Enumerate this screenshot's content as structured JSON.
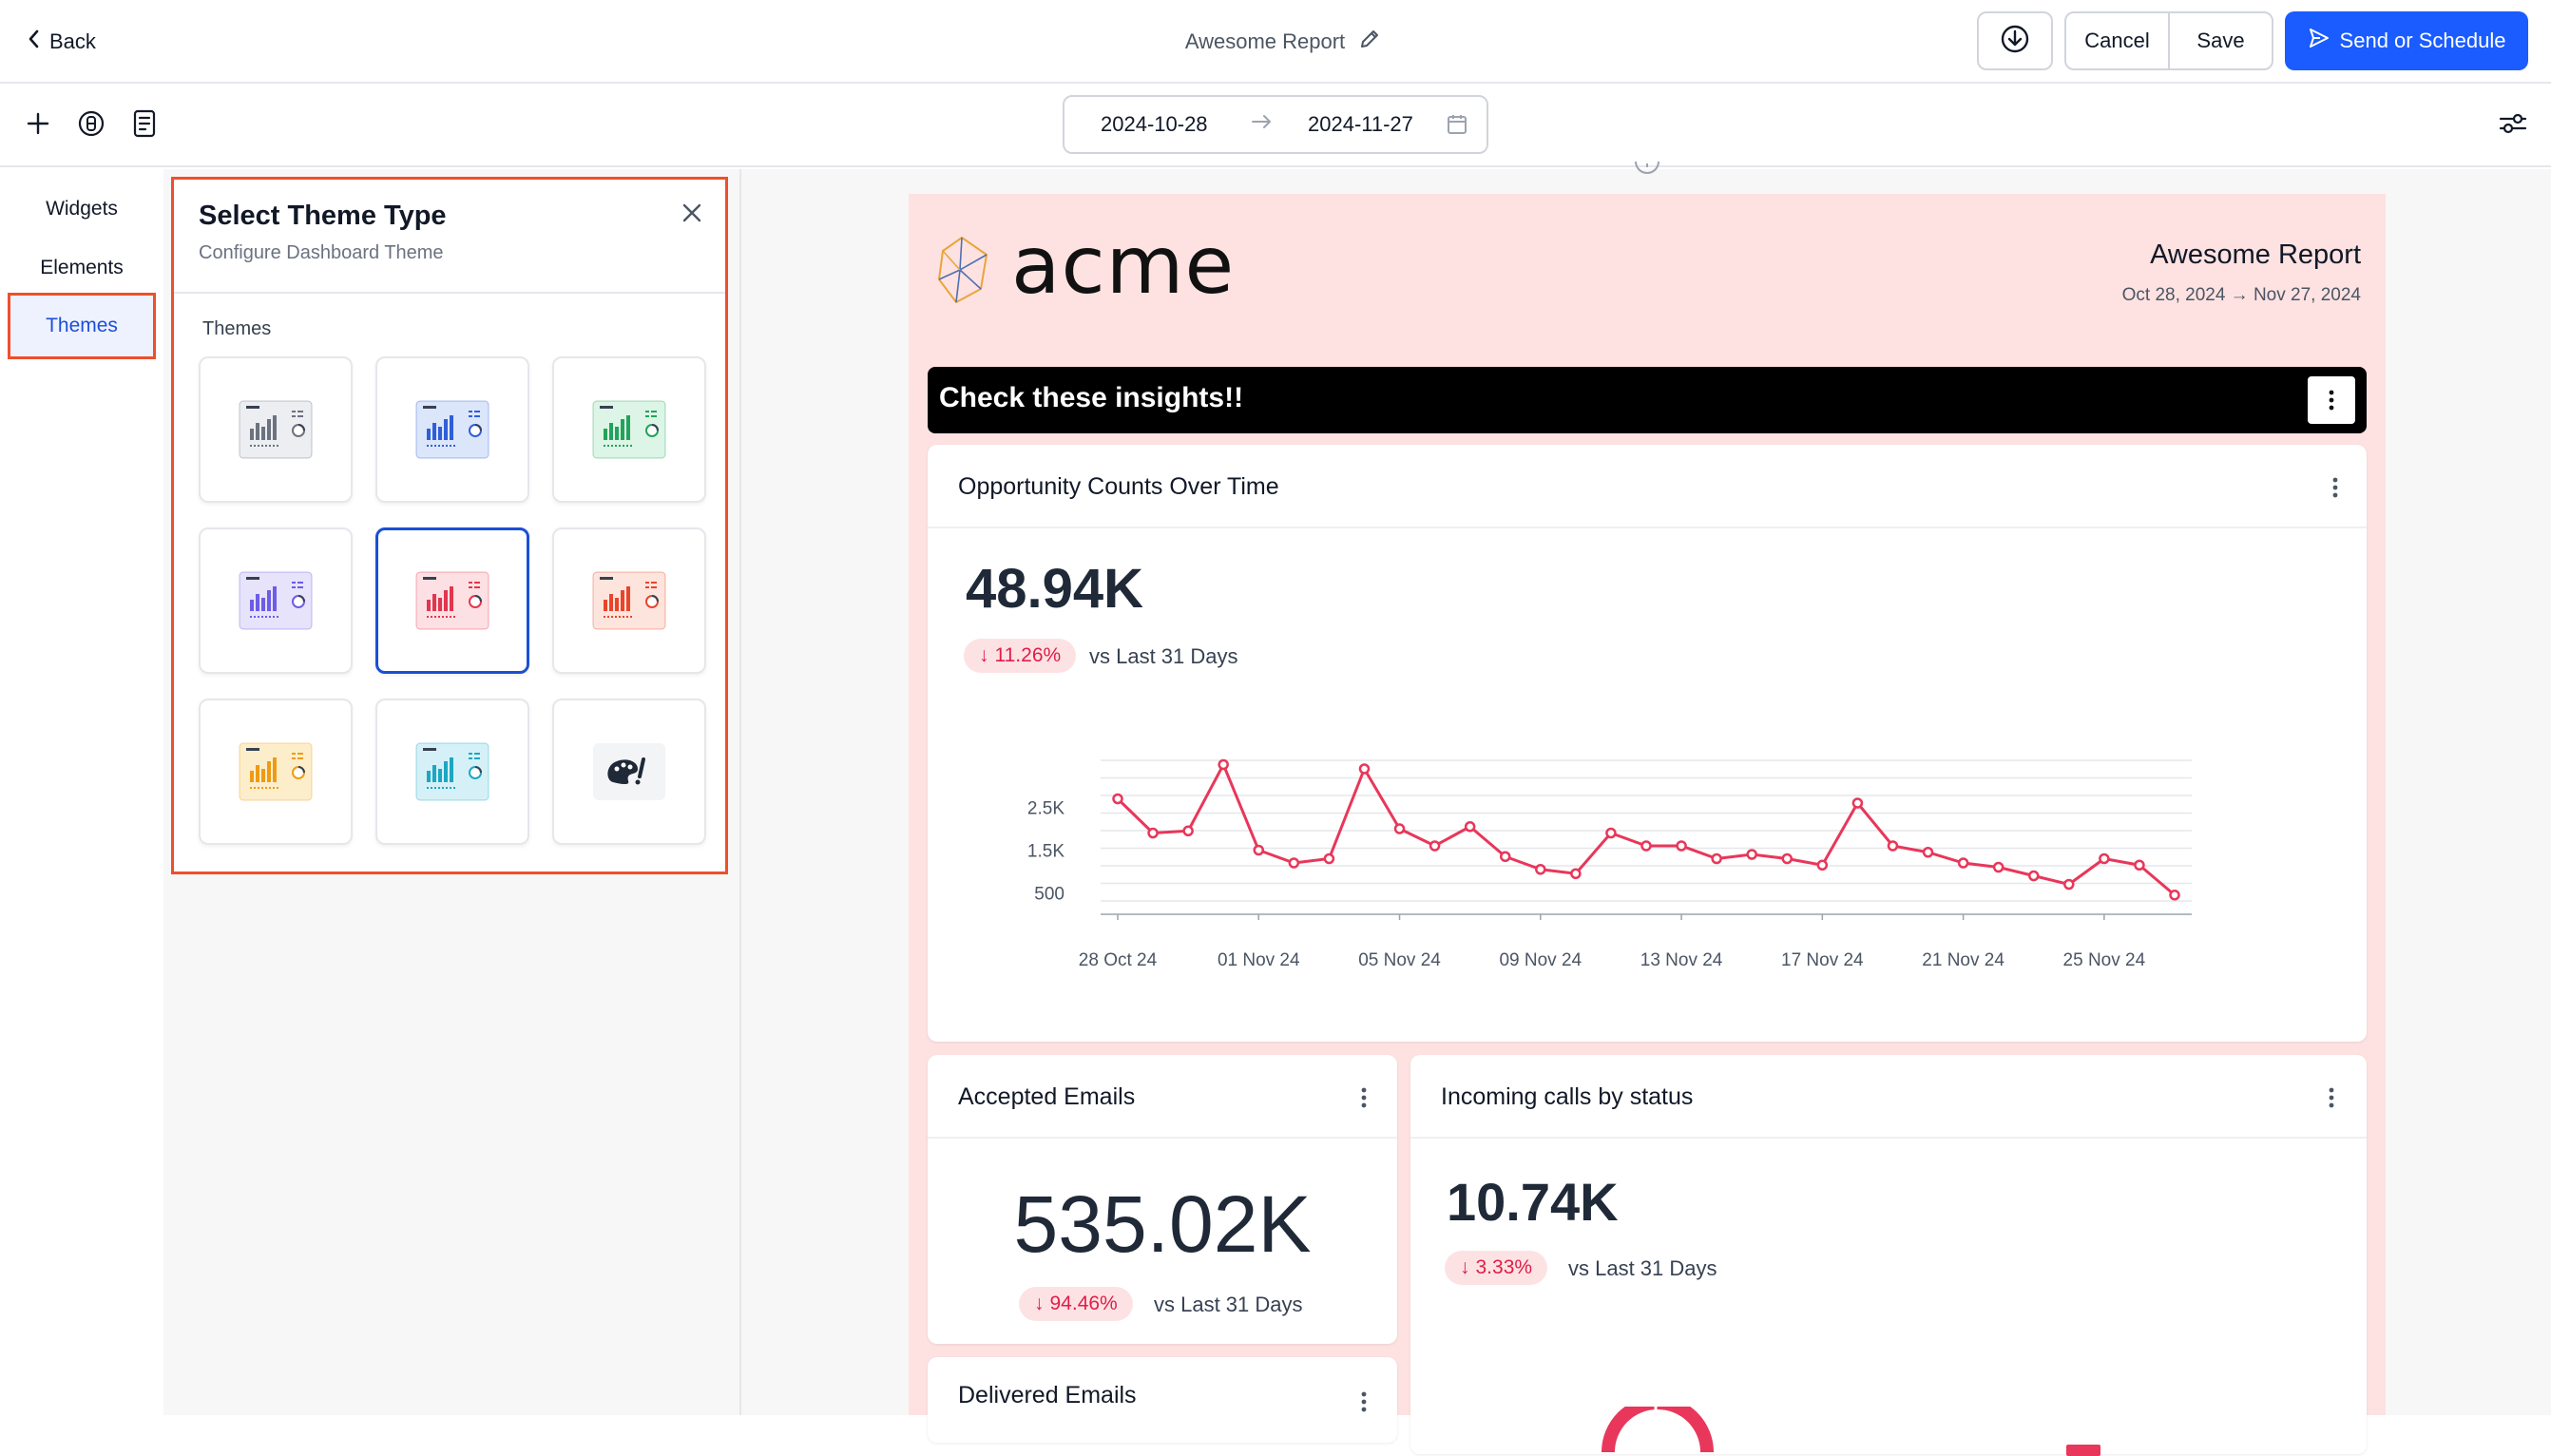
{
  "topbar": {
    "back_label": "Back",
    "report_title": "Awesome Report",
    "cancel_label": "Cancel",
    "save_label": "Save",
    "send_label": "Send or Schedule"
  },
  "date_range": {
    "start": "2024-10-28",
    "end": "2024-11-27"
  },
  "nav": {
    "items": [
      {
        "label": "Widgets"
      },
      {
        "label": "Elements"
      },
      {
        "label": "Themes",
        "active": true
      }
    ]
  },
  "theme_panel": {
    "title": "Select Theme Type",
    "subtitle": "Configure Dashboard Theme",
    "section_label": "Themes",
    "themes": [
      {
        "name": "gray",
        "accent": "#6b7280",
        "bg": "#eceef2"
      },
      {
        "name": "blue",
        "accent": "#2f5fd8",
        "bg": "#dce6fb"
      },
      {
        "name": "green",
        "accent": "#22a35a",
        "bg": "#dcf5e6"
      },
      {
        "name": "violet",
        "accent": "#6d5ce7",
        "bg": "#e6e3fb"
      },
      {
        "name": "red",
        "accent": "#e2364f",
        "bg": "#fde0e3",
        "selected": true
      },
      {
        "name": "orange-red",
        "accent": "#e8452c",
        "bg": "#fde4dc"
      },
      {
        "name": "amber",
        "accent": "#ee9b13",
        "bg": "#fdeecb"
      },
      {
        "name": "cyan",
        "accent": "#1ba7c4",
        "bg": "#d5f1f7"
      },
      {
        "name": "custom",
        "icon": "palette-icon"
      }
    ]
  },
  "report": {
    "logo_text": "acme",
    "title": "Awesome Report",
    "dates": "Oct 28, 2024 → Nov 27, 2024",
    "banner": "Check these insights!!",
    "colors": {
      "background": "#fde2e1",
      "accent": "#e8375a",
      "primary": "#1a5cff"
    }
  },
  "cards": {
    "opportunity": {
      "title": "Opportunity Counts Over Time",
      "value": "48.94K",
      "delta": "11.26%",
      "compare": "vs Last 31 Days"
    },
    "accepted": {
      "title": "Accepted Emails",
      "value": "535.02K",
      "delta": "94.46%",
      "compare": "vs Last 31 Days"
    },
    "delivered": {
      "title": "Delivered Emails"
    },
    "calls": {
      "title": "Incoming calls by status",
      "value": "10.74K",
      "delta": "3.33%",
      "compare": "vs Last 31 Days"
    }
  },
  "chart_data": {
    "type": "line",
    "title": "",
    "xlabel": "",
    "ylabel": "",
    "x": [
      "28 Oct 24",
      "29 Oct 24",
      "30 Oct 24",
      "31 Oct 24",
      "01 Nov 24",
      "02 Nov 24",
      "03 Nov 24",
      "04 Nov 24",
      "05 Nov 24",
      "06 Nov 24",
      "07 Nov 24",
      "08 Nov 24",
      "09 Nov 24",
      "10 Nov 24",
      "11 Nov 24",
      "12 Nov 24",
      "13 Nov 24",
      "14 Nov 24",
      "15 Nov 24",
      "16 Nov 24",
      "17 Nov 24",
      "18 Nov 24",
      "19 Nov 24",
      "20 Nov 24",
      "21 Nov 24",
      "22 Nov 24",
      "23 Nov 24",
      "24 Nov 24",
      "25 Nov 24",
      "26 Nov 24",
      "27 Nov 24"
    ],
    "x_tick_labels": [
      "28 Oct 24",
      "01 Nov 24",
      "05 Nov 24",
      "09 Nov 24",
      "13 Nov 24",
      "17 Nov 24",
      "21 Nov 24",
      "25 Nov 24"
    ],
    "series": [
      {
        "values": [
          2700,
          1900,
          1950,
          3500,
          1500,
          1200,
          1300,
          3400,
          2000,
          1600,
          2050,
          1350,
          1050,
          950,
          1900,
          1600,
          1600,
          1300,
          1400,
          1300,
          1150,
          2600,
          1600,
          1450,
          1200,
          1100,
          900,
          700,
          1300,
          1150,
          450
        ]
      }
    ],
    "y_ticks": [
      500,
      1500,
      2500
    ],
    "y_tick_labels": [
      "500",
      "1.5K",
      "2.5K"
    ],
    "ylim": [
      0,
      3600
    ],
    "grid": true,
    "color": "#e8375a"
  }
}
